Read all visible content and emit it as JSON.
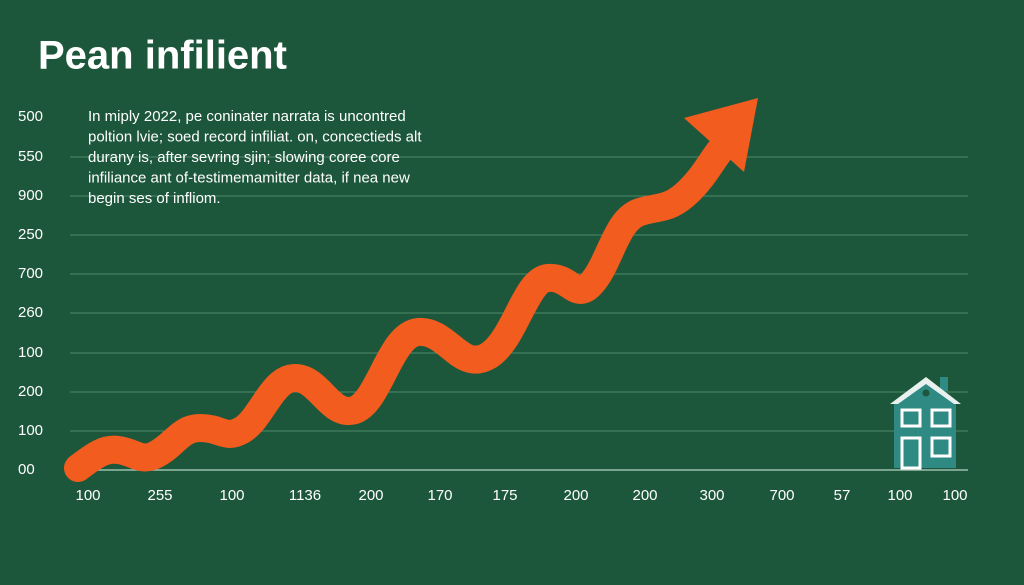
{
  "title": "Pean infilient",
  "paragraph": [
    "In miply 2022, pe coninater narrata is uncontred",
    "poltion lvie; soed record infiliat. on, concectieds alt",
    "durany is, after sevring sjin; slowing coree core",
    "infiliance ant of-testimemamitter data, if nea new",
    "begin ses of infliom."
  ],
  "y_axis_labels": [
    "500",
    "550",
    "900",
    "250",
    "700",
    "260",
    "100",
    "200",
    "100",
    "00"
  ],
  "x_axis_labels": [
    "100",
    "255",
    "100",
    "1136",
    "200",
    "170",
    "175",
    "200",
    "200",
    "300",
    "700",
    "57",
    "100",
    "100"
  ]
}
